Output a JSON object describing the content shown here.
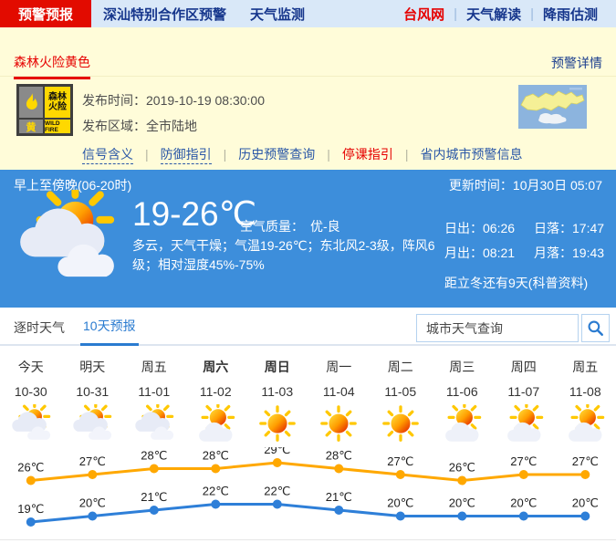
{
  "nav": {
    "tabs": [
      {
        "label": "预警预报",
        "active": true
      },
      {
        "label": "深汕特别合作区预警",
        "active": false
      },
      {
        "label": "天气监测",
        "active": false
      }
    ],
    "links": [
      {
        "label": "台风网",
        "highlight": true
      },
      {
        "label": "天气解读",
        "highlight": false
      },
      {
        "label": "降雨估测",
        "highlight": false
      }
    ]
  },
  "alert": {
    "title": "森林火险黄色",
    "detail_link": "预警详情",
    "icon": {
      "line1": "森林",
      "line2": "火险",
      "level": "黄",
      "en": "WILD FIRE"
    },
    "publish_time_label": "发布时间：",
    "publish_time": "2019-10-19 08:30:00",
    "publish_area_label": "发布区域：",
    "publish_area": "全市陆地",
    "links": [
      {
        "label": "信号含义",
        "dashed": true,
        "highlight": false
      },
      {
        "label": "防御指引",
        "dashed": true,
        "highlight": false
      },
      {
        "label": "历史预警查询",
        "dashed": false,
        "highlight": false
      },
      {
        "label": "停课指引",
        "dashed": false,
        "highlight": true
      },
      {
        "label": "省内城市预警信息",
        "dashed": false,
        "highlight": false
      }
    ]
  },
  "current": {
    "period": "早上至傍晚(06-20时)",
    "update_label": "更新时间：",
    "update_time": "10月30日 05:07",
    "icon": "cloudy-sun",
    "temp_range": "19-26℃",
    "air_quality_label": "空气质量：",
    "air_quality": "优-良",
    "description": "多云，天气干燥；气温19-26℃；东北风2-3级，阵风6级；相对湿度45%-75%",
    "sunrise_label": "日出：",
    "sunrise": "06:26",
    "sunset_label": "日落：",
    "sunset": "17:47",
    "moonrise_label": "月出：",
    "moonrise": "08:21",
    "moonset_label": "月落：",
    "moonset": "19:43",
    "solar_term_note": "距立冬还有9天(科普资料)"
  },
  "tabs": {
    "hourly": "逐时天气",
    "ten_day": "10天预报",
    "search_placeholder": "城市天气查询"
  },
  "chart_data": {
    "type": "line",
    "title": "10天预报",
    "categories_day": [
      "今天",
      "明天",
      "周五",
      "周六",
      "周日",
      "周一",
      "周二",
      "周三",
      "周四",
      "周五"
    ],
    "bold_flags": [
      false,
      false,
      false,
      true,
      true,
      false,
      false,
      false,
      false,
      false
    ],
    "categories_date": [
      "10-30",
      "10-31",
      "11-01",
      "11-02",
      "11-03",
      "11-04",
      "11-05",
      "11-06",
      "11-07",
      "11-08"
    ],
    "icons": [
      "cloudy-sun",
      "cloudy-sun",
      "cloudy-sun",
      "sun-cloud",
      "sunny",
      "sunny",
      "sunny",
      "sun-cloud",
      "sun-cloud",
      "sun-cloud"
    ],
    "series": [
      {
        "name": "high",
        "color": "#ffa800",
        "values": [
          26,
          27,
          28,
          28,
          29,
          28,
          27,
          26,
          27,
          27
        ]
      },
      {
        "name": "low",
        "color": "#2e7fd8",
        "values": [
          19,
          20,
          21,
          22,
          22,
          21,
          20,
          20,
          20,
          20
        ]
      }
    ],
    "unit": "℃",
    "ylim": [
      17,
      31
    ],
    "grid": false,
    "legend": "none"
  },
  "colors": {
    "accent_red": "#e60000",
    "nav_bg": "#d9e8f8",
    "alert_bg": "#fffcd9",
    "weather_bg": "#3d8edb",
    "link_blue": "#2a57a7",
    "tab_active_blue": "#2a7bd0",
    "high_line": "#ffa800",
    "low_line": "#2e7fd8"
  }
}
